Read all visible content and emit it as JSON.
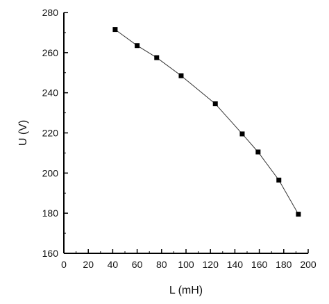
{
  "chart_data": {
    "type": "line",
    "xlabel": "L (mH)",
    "ylabel": "U (V)",
    "xlim": [
      0,
      200
    ],
    "ylim": [
      160,
      280
    ],
    "xticks": [
      0,
      20,
      40,
      60,
      80,
      100,
      120,
      140,
      160,
      180,
      200
    ],
    "yticks": [
      160,
      180,
      200,
      220,
      240,
      260,
      280
    ],
    "grid": false,
    "series": [
      {
        "x": [
          42,
          60,
          76,
          96,
          124,
          146,
          159,
          176,
          192
        ],
        "y": [
          271.5,
          263.5,
          257.5,
          248.5,
          234.5,
          219.5,
          210.5,
          196.5,
          179.5
        ],
        "marker": "square",
        "line_color": "#333333",
        "marker_color": "#000000"
      }
    ]
  }
}
